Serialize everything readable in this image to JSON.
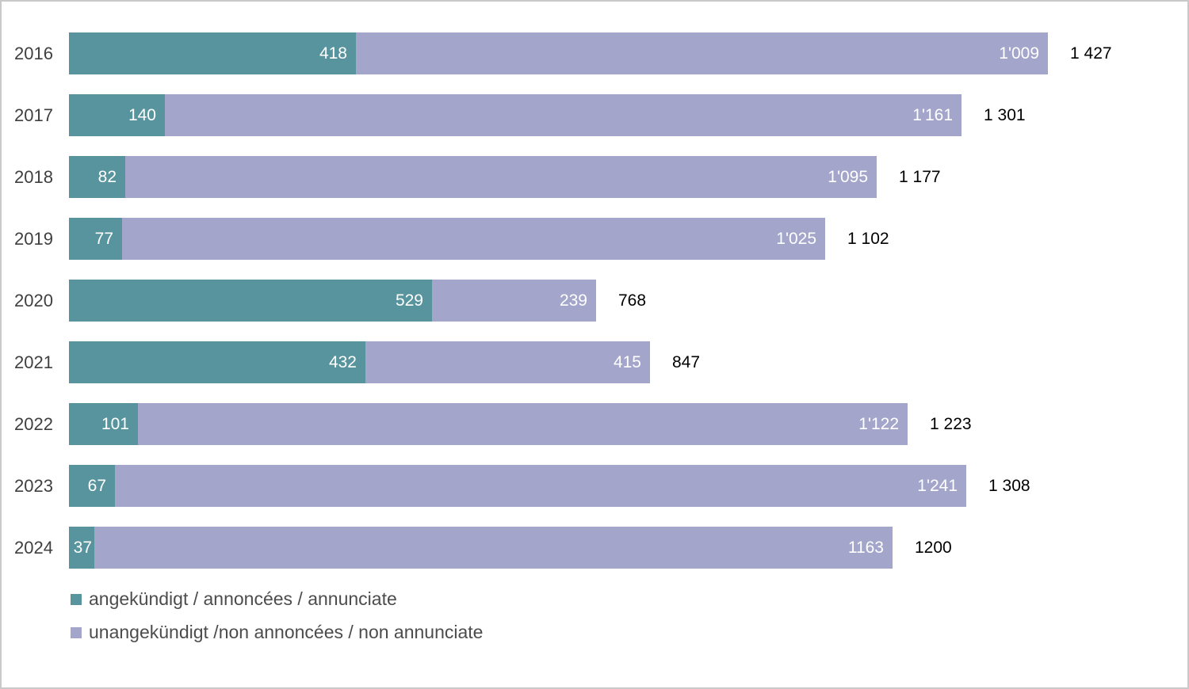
{
  "chart_data": {
    "type": "bar",
    "orientation": "horizontal",
    "stacked": true,
    "title": "",
    "xlabel": "",
    "ylabel": "",
    "grid": false,
    "legend_position": "bottom-left",
    "xlim": [
      0,
      1427
    ],
    "categories": [
      "2016",
      "2017",
      "2018",
      "2019",
      "2020",
      "2021",
      "2022",
      "2023",
      "2024"
    ],
    "series": [
      {
        "name": "angekündigt / annoncées / annunciate",
        "color": "#58949d",
        "values": [
          418,
          140,
          82,
          77,
          529,
          432,
          101,
          67,
          37
        ],
        "value_labels": [
          "418",
          "140",
          "82",
          "77",
          "529",
          "432",
          "101",
          "67",
          "37"
        ]
      },
      {
        "name": "unangekündigt /non annoncées / non annunciate",
        "color": "#a3a5cb",
        "values": [
          1009,
          1161,
          1095,
          1025,
          239,
          415,
          1122,
          1241,
          1163
        ],
        "value_labels": [
          "1'009",
          "1'161",
          "1'095",
          "1'025",
          "239",
          "415",
          "1'122",
          "1'241",
          "1163"
        ]
      }
    ],
    "totals": [
      1427,
      1301,
      1177,
      1102,
      768,
      847,
      1223,
      1308,
      1200
    ],
    "total_labels": [
      "1 427",
      "1 301",
      "1 177",
      "1 102",
      "768",
      "847",
      "1 223",
      "1 308",
      "1200"
    ]
  },
  "colors": {
    "announced": "#58949d",
    "unannounced": "#a3a5cb",
    "year_label": "#3f3f3f",
    "total_label": "#000000",
    "bar_value_text": "#ffffff",
    "legend_text": "#4c4c4c",
    "border": "#c9c9c9",
    "background": "#ffffff"
  }
}
